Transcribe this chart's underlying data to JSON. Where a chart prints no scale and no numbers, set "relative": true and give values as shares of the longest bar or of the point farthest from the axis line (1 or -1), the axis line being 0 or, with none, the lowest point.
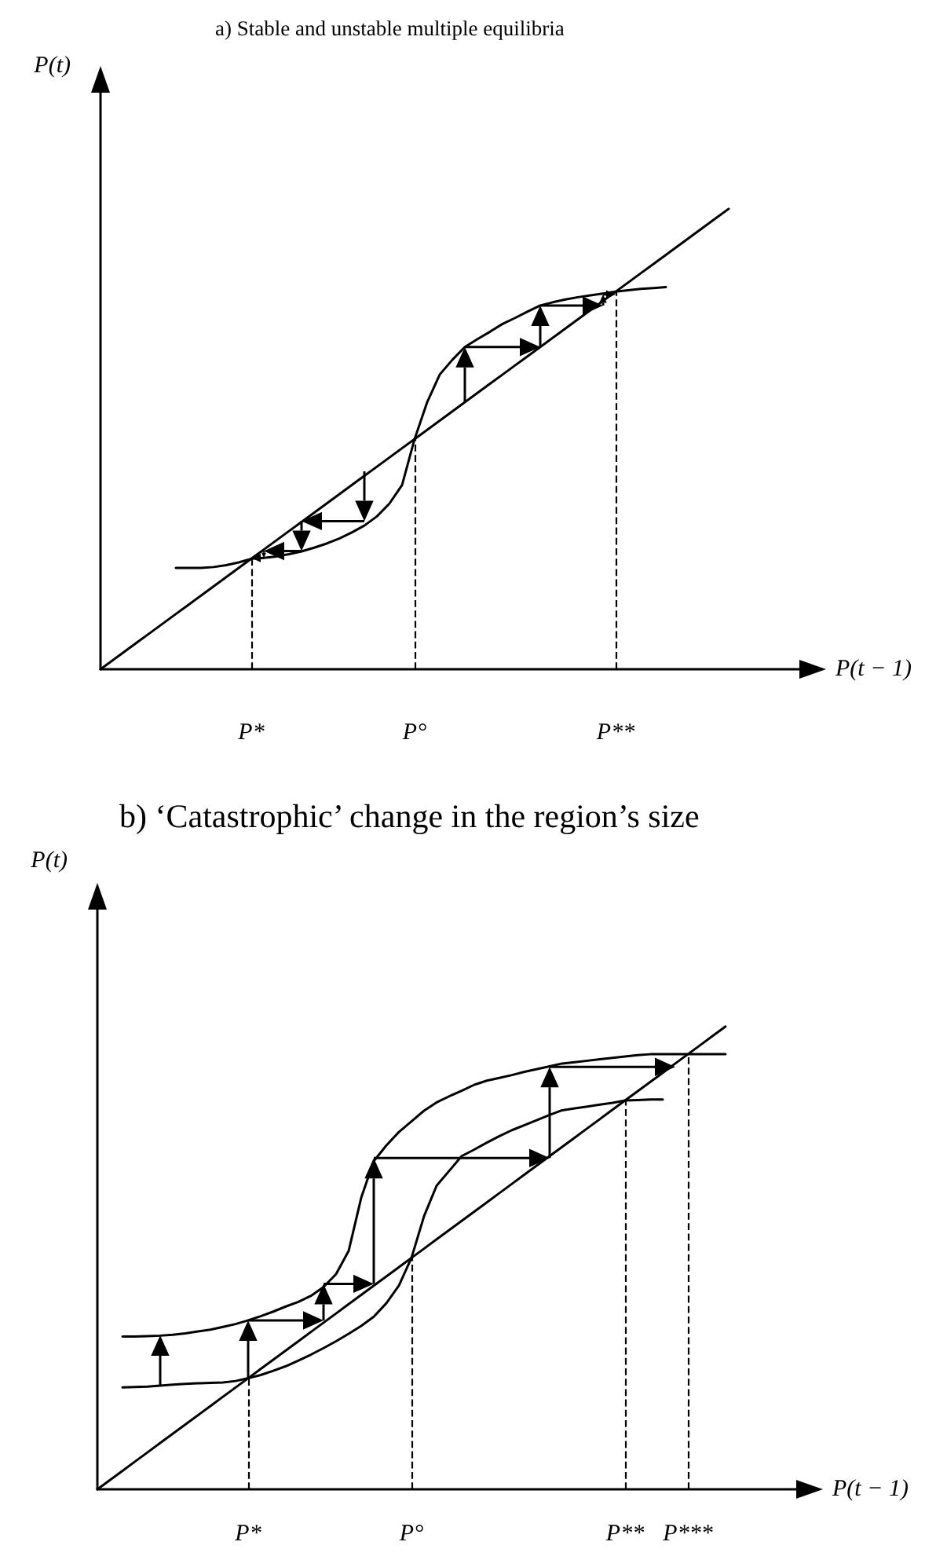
{
  "chart_data": [
    {
      "type": "line",
      "title": "a) Stable and unstable multiple equilibria",
      "xlabel": "P(t − 1)",
      "ylabel": "P(t)",
      "relative": true,
      "categories": [
        null,
        null,
        null,
        null,
        null,
        null,
        null,
        null,
        null,
        null,
        null,
        null,
        "P*",
        null,
        null,
        null,
        null,
        null,
        null,
        null,
        null,
        null,
        null,
        null,
        null,
        "P°",
        null,
        null,
        null,
        null,
        null,
        null,
        null,
        null,
        null,
        null,
        null,
        null,
        null,
        null,
        null,
        "P**",
        null,
        null,
        null,
        null,
        null,
        null,
        null,
        null,
        null,
        null,
        null,
        null,
        null,
        null,
        null,
        null
      ],
      "series": [
        {
          "color": "#000000",
          "values": [
            0,
            0.02,
            0.04,
            0.06,
            0.08,
            0.1,
            0.12,
            0.14,
            0.16,
            0.18,
            0.2,
            0.22,
            0.24,
            0.26,
            0.28,
            0.3,
            0.32,
            0.34,
            0.36,
            0.38,
            0.4,
            0.42,
            0.44,
            0.46,
            0.48,
            0.5,
            0.52,
            0.54,
            0.56,
            0.58,
            0.6,
            0.62,
            0.64,
            0.66,
            0.68,
            0.7,
            0.72,
            0.74,
            0.76,
            0.78,
            0.8,
            0.82,
            0.84,
            0.86,
            0.88,
            0.9,
            0.92,
            0.94,
            0.96,
            0.98,
            1,
            null,
            null,
            null,
            null,
            null,
            null,
            null
          ]
        },
        {
          "color": "#000000",
          "values": [
            null,
            null,
            null,
            null,
            null,
            null,
            0.22,
            0.22,
            0.22,
            0.222,
            0.226,
            0.232,
            0.24,
            0.242,
            0.245,
            0.25,
            0.256,
            0.264,
            0.273,
            0.284,
            0.297,
            0.312,
            0.332,
            0.36,
            0.4,
            0.5,
            0.58,
            0.64,
            0.672,
            0.7,
            0.717,
            0.733,
            0.75,
            0.763,
            0.777,
            0.79,
            0.797,
            0.803,
            0.808,
            0.812,
            0.816,
            0.82,
            0.823,
            0.826,
            0.828,
            0.83,
            null,
            null,
            null,
            null,
            null,
            null,
            null,
            null,
            null,
            null,
            null,
            null
          ]
        }
      ],
      "ref_lines": [
        {
          "axis": "x",
          "value": "P*",
          "line_style": "dashed"
        },
        {
          "axis": "x",
          "value": "P°",
          "line_style": "dashed"
        },
        {
          "axis": "x",
          "value": "P**",
          "line_style": "dashed"
        }
      ]
    },
    {
      "type": "line",
      "title": "b) ‘Catastrophic’ change in the region’s size",
      "xlabel": "P(t − 1)",
      "ylabel": "P(t)",
      "relative": true,
      "categories": [
        null,
        null,
        null,
        null,
        null,
        null,
        null,
        null,
        null,
        null,
        null,
        null,
        "P*",
        null,
        null,
        null,
        null,
        null,
        null,
        null,
        null,
        null,
        null,
        null,
        null,
        "P°",
        null,
        null,
        null,
        null,
        null,
        null,
        null,
        null,
        null,
        null,
        null,
        null,
        null,
        null,
        null,
        null,
        "P**",
        null,
        null,
        null,
        null,
        "P***",
        null,
        null,
        null,
        null,
        null,
        null,
        null,
        null,
        null,
        null
      ],
      "series": [
        {
          "color": "#000000",
          "values": [
            0,
            0.02,
            0.04,
            0.06,
            0.08,
            0.1,
            0.12,
            0.14,
            0.16,
            0.18,
            0.2,
            0.22,
            0.24,
            0.26,
            0.28,
            0.3,
            0.32,
            0.34,
            0.36,
            0.38,
            0.4,
            0.42,
            0.44,
            0.46,
            0.48,
            0.5,
            0.52,
            0.54,
            0.56,
            0.58,
            0.6,
            0.62,
            0.64,
            0.66,
            0.68,
            0.7,
            0.72,
            0.74,
            0.76,
            0.78,
            0.8,
            0.82,
            0.84,
            0.86,
            0.88,
            0.9,
            0.92,
            0.94,
            0.96,
            0.98,
            1,
            null,
            null,
            null,
            null,
            null,
            null,
            null
          ]
        },
        {
          "color": "#000000",
          "values": [
            null,
            null,
            0.22,
            0.221,
            0.222,
            0.224,
            0.226,
            0.228,
            0.229,
            0.23,
            0.231,
            0.234,
            0.24,
            0.247,
            0.256,
            0.266,
            0.278,
            0.291,
            0.305,
            0.32,
            0.336,
            0.353,
            0.373,
            0.402,
            0.44,
            0.5,
            0.59,
            0.656,
            0.688,
            0.72,
            0.734,
            0.749,
            0.763,
            0.776,
            0.787,
            0.798,
            0.809,
            0.819,
            0.823,
            0.827,
            0.831,
            0.835,
            0.84,
            0.841,
            0.842,
            0.842,
            null,
            null,
            null,
            null,
            null,
            null,
            null,
            null,
            null,
            null,
            null,
            null
          ]
        },
        {
          "color": "#000000",
          "values": [
            null,
            null,
            0.33,
            0.33,
            0.331,
            0.332,
            0.334,
            0.337,
            0.341,
            0.345,
            0.351,
            0.357,
            0.365,
            0.374,
            0.384,
            0.395,
            0.405,
            0.418,
            0.437,
            0.465,
            0.515,
            0.63,
            0.709,
            0.743,
            0.772,
            0.795,
            0.818,
            0.836,
            0.849,
            0.861,
            0.874,
            0.883,
            0.889,
            0.895,
            0.902,
            0.908,
            0.914,
            0.92,
            0.923,
            0.926,
            0.929,
            0.932,
            0.935,
            0.938,
            0.94,
            0.94,
            0.94,
            0.94,
            0.94,
            0.94,
            0.94,
            null,
            null,
            null,
            null,
            null,
            null,
            null
          ]
        }
      ],
      "ref_lines": [
        {
          "axis": "x",
          "value": "P*",
          "line_style": "dashed"
        },
        {
          "axis": "x",
          "value": "P°",
          "line_style": "dashed"
        },
        {
          "axis": "x",
          "value": "P**",
          "line_style": "dashed"
        },
        {
          "axis": "x",
          "value": "P***",
          "line_style": "dashed"
        }
      ]
    }
  ]
}
